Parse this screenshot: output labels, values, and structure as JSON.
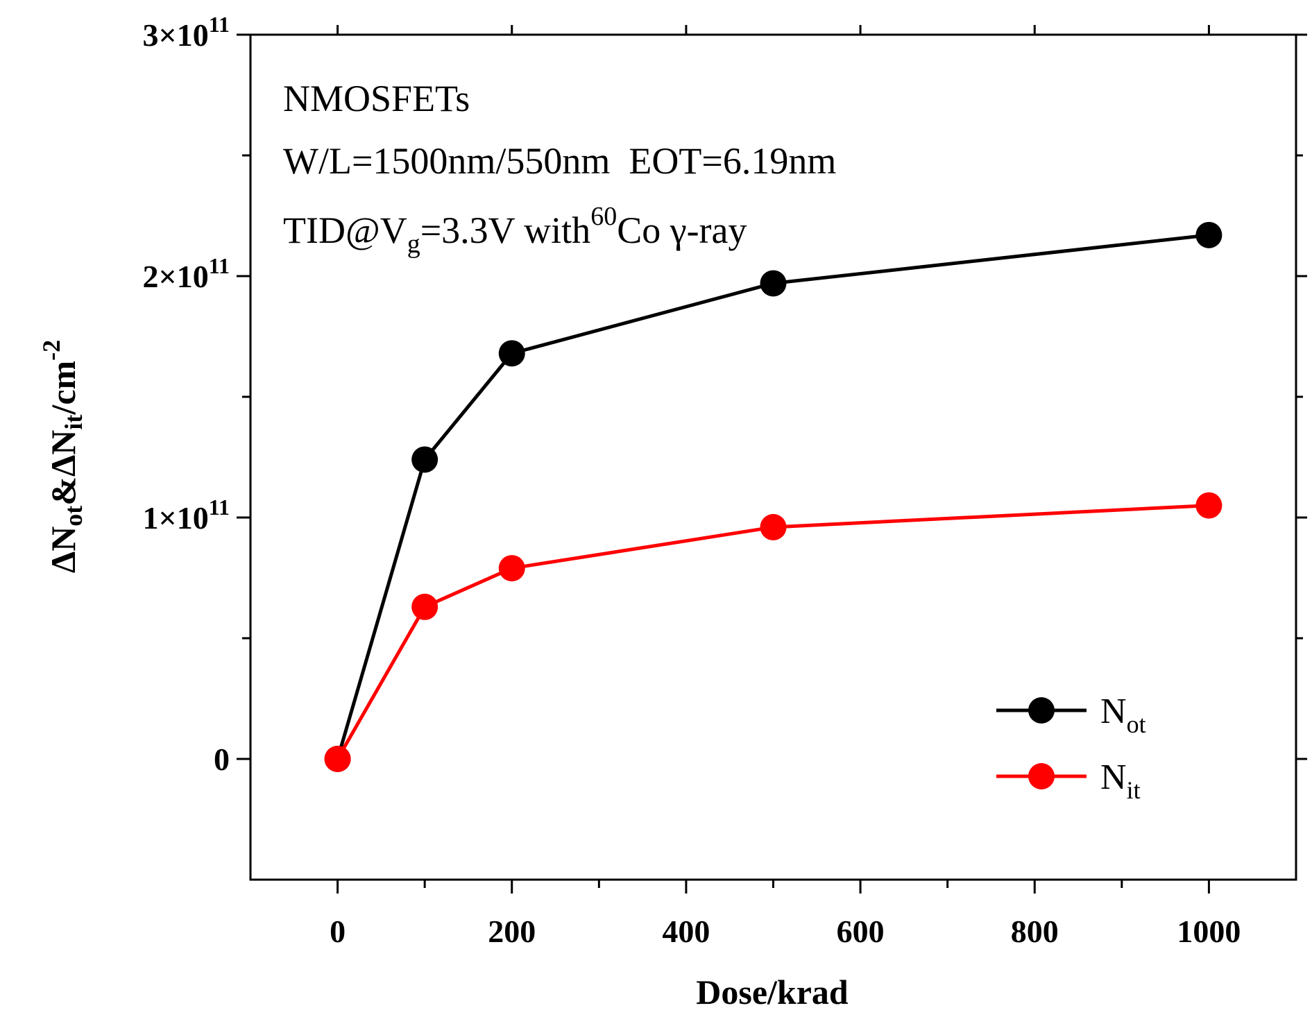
{
  "chart_data": {
    "type": "line",
    "xlabel": "Dose/krad",
    "ylabel": {
      "prefix": "ΔN",
      "sub1": "ot",
      "middle": "&ΔN",
      "sub2": "it",
      "suffix": "/cm",
      "sup": "-2"
    },
    "xlim": [
      -100,
      1100
    ],
    "ylim": [
      -50000000000.0,
      300000000000.0
    ],
    "x_ticks": [
      0,
      200,
      400,
      600,
      800,
      1000
    ],
    "x_tick_labels": [
      "0",
      "200",
      "400",
      "600",
      "800",
      "1000"
    ],
    "x_minor_ticks": [
      100,
      300,
      500,
      700,
      900
    ],
    "y_ticks": [
      0,
      100000000000.0,
      200000000000.0,
      300000000000.0
    ],
    "y_tick_labels": [
      {
        "base": "0",
        "exp": ""
      },
      {
        "base": "1×10",
        "exp": "11"
      },
      {
        "base": "2×10",
        "exp": "11"
      },
      {
        "base": "3×10",
        "exp": "11"
      }
    ],
    "y_minor_ticks": [
      50000000000.0,
      150000000000.0,
      250000000000.0
    ],
    "annotations": {
      "line1": "NMOSFETs",
      "line2": "W/L=1500nm/550nm  EOT=6.19nm",
      "line3_a": "TID@V",
      "line3_sub": "g",
      "line3_b": "=3.3V with",
      "line3_sup": "60",
      "line3_c": "Co γ-ray"
    },
    "legend_position": "bottom-right",
    "series": [
      {
        "name": "N",
        "name_sub": "ot",
        "color": "#000000",
        "x": [
          0,
          100,
          200,
          500,
          1000
        ],
        "y": [
          0,
          124000000000.0,
          168000000000.0,
          197000000000.0,
          217000000000.0
        ]
      },
      {
        "name": "N",
        "name_sub": "it",
        "color": "#ff0000",
        "x": [
          0,
          100,
          200,
          500,
          1000
        ],
        "y": [
          0,
          63000000000.0,
          79000000000.0,
          96000000000.0,
          105000000000.0
        ]
      }
    ]
  }
}
